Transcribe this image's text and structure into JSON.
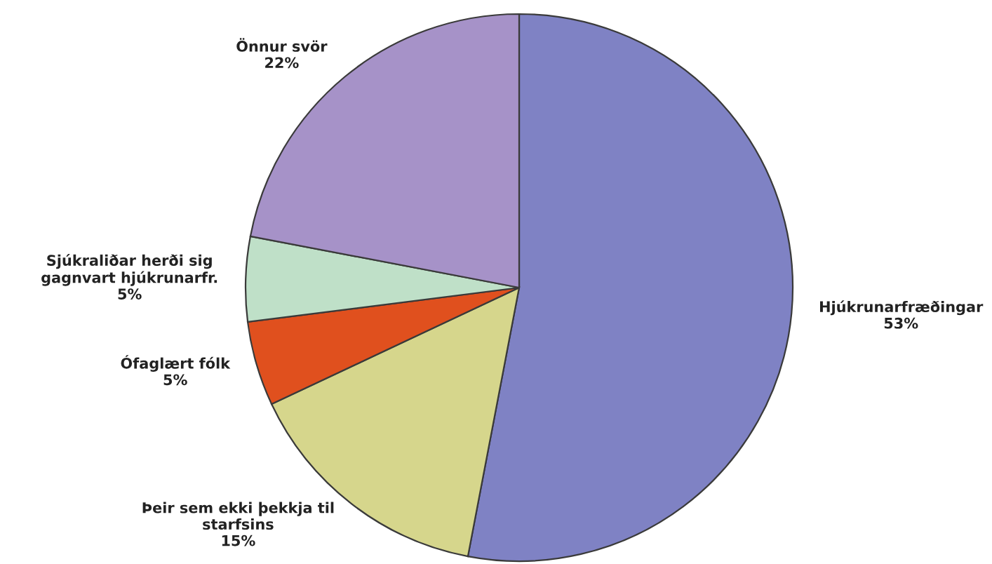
{
  "chart_data": {
    "type": "pie",
    "categories": [
      "Hjúkrunarfræðingar",
      "Þeir sem ekki þekkja til starfsins",
      "Ófaglært fólk",
      "Sjúkraliðar herði sig gagnvart hjúkrunarfr.",
      "Önnur svör"
    ],
    "values": [
      53,
      15,
      5,
      5,
      22
    ],
    "colors": [
      "#7f82c4",
      "#d6d68c",
      "#e0501e",
      "#bfe0c8",
      "#a692c8"
    ],
    "value_labels": [
      "53%",
      "15%",
      "5%",
      "5%",
      "22%"
    ]
  }
}
